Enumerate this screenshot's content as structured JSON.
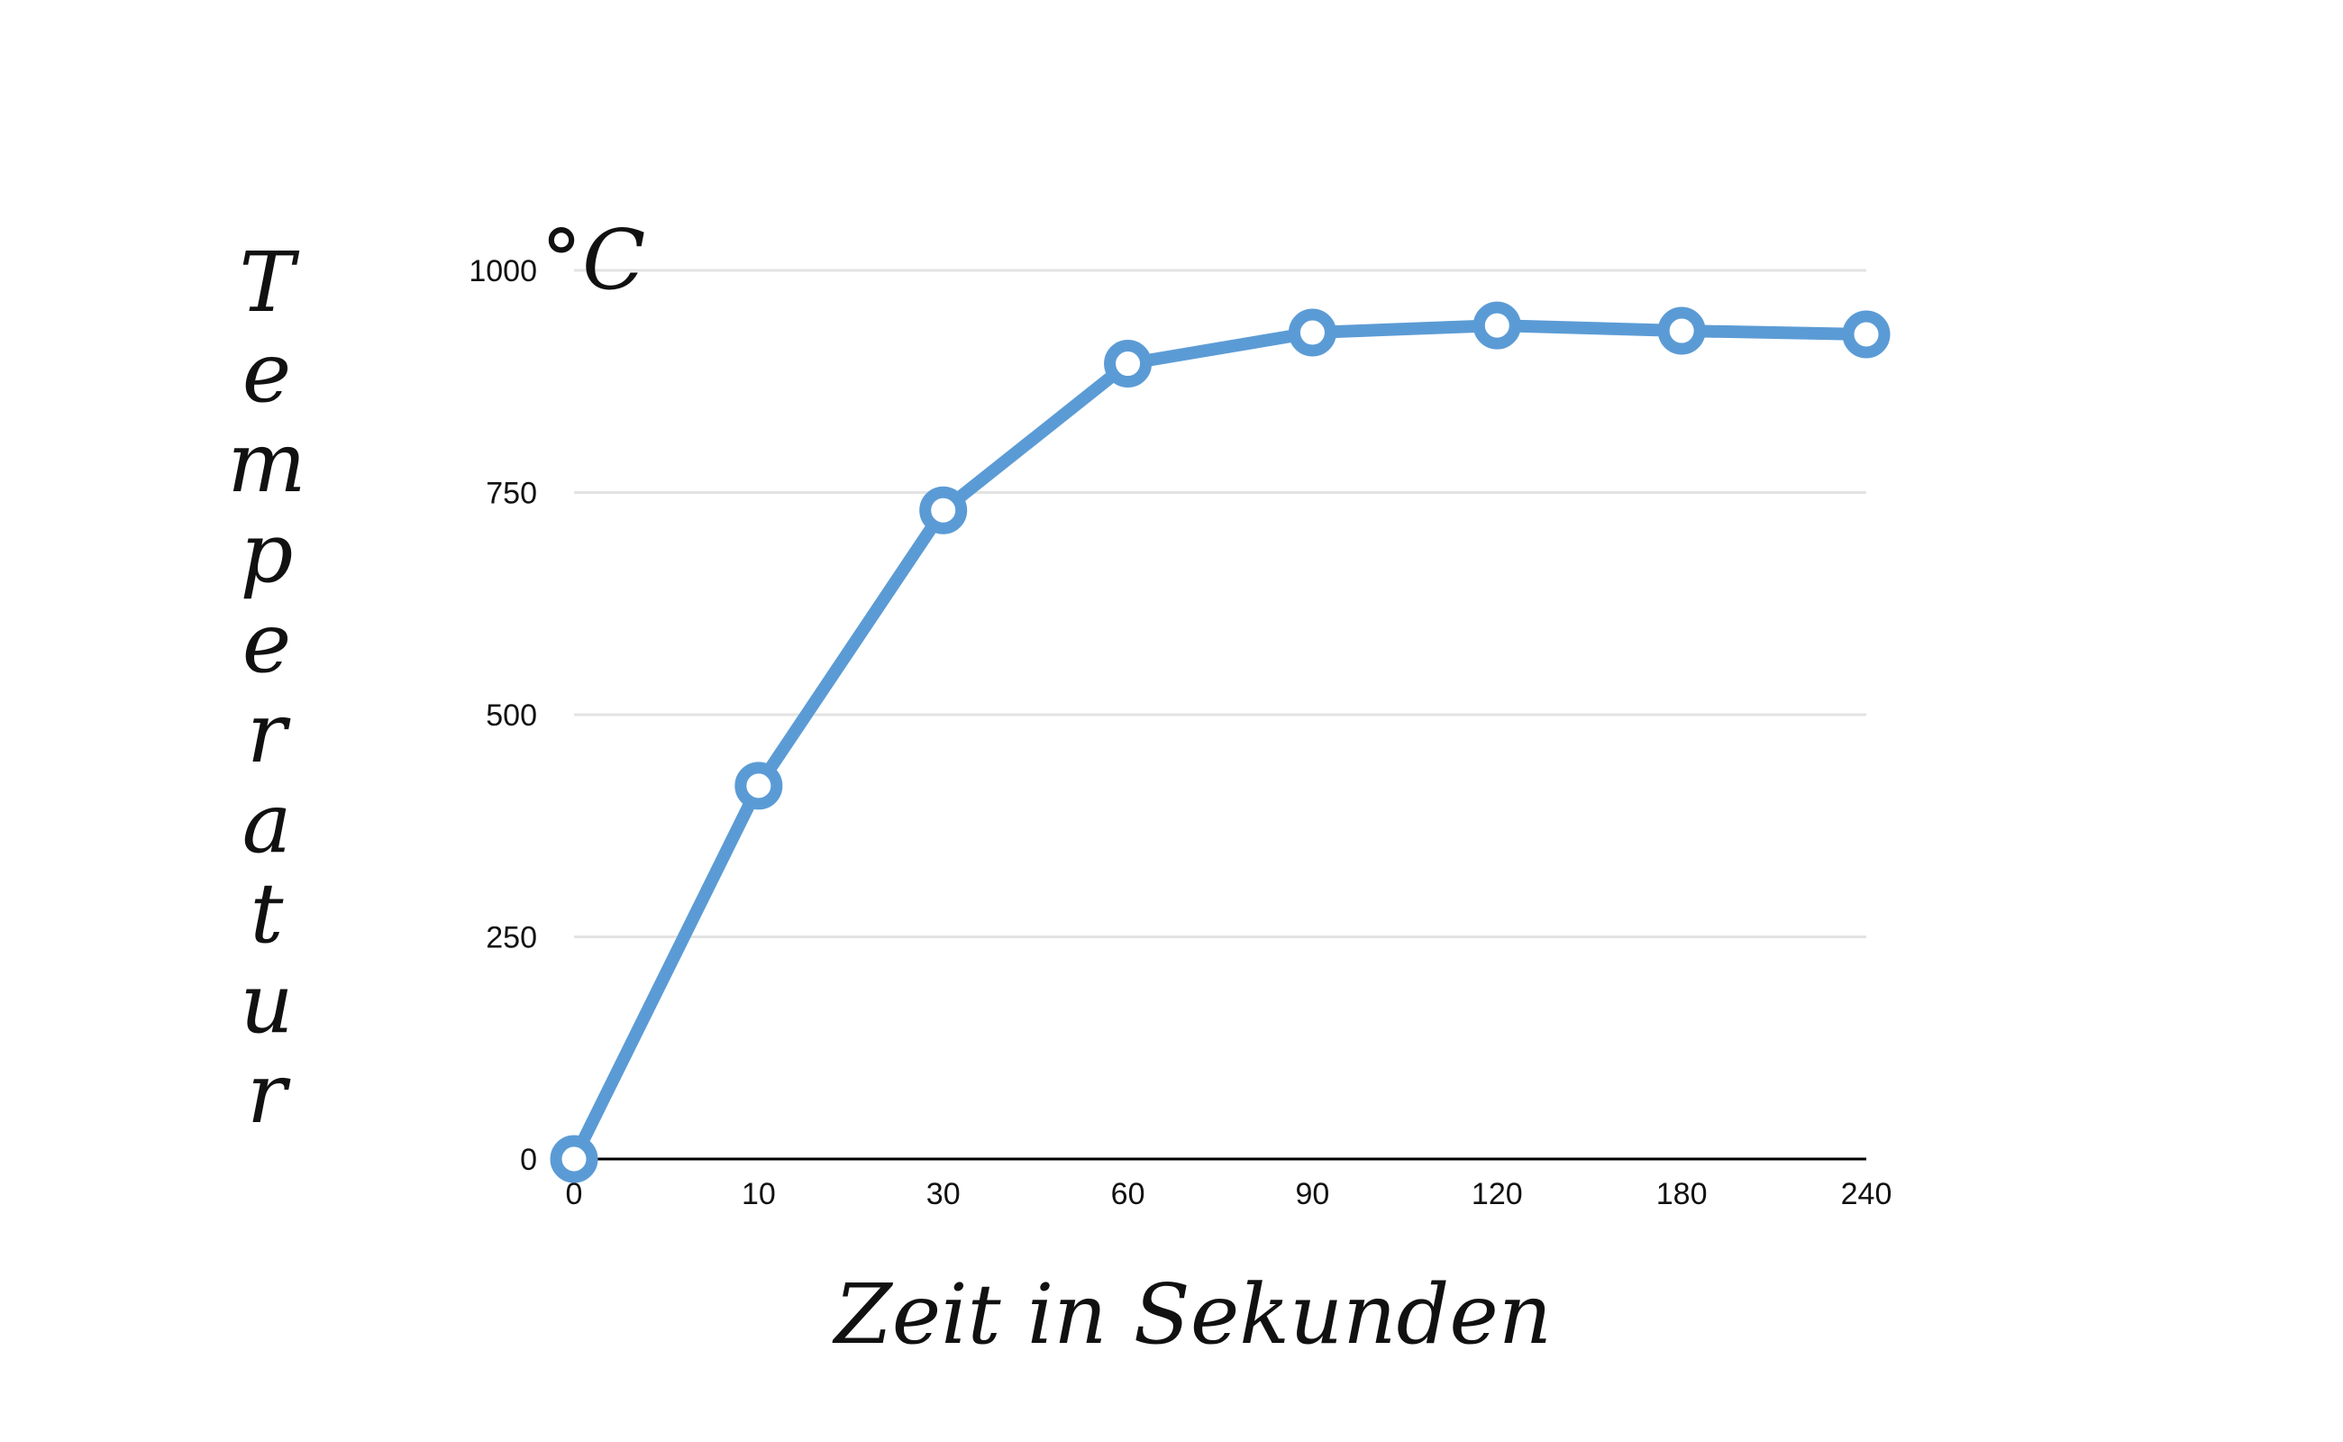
{
  "chart_data": {
    "type": "line",
    "categories": [
      "0",
      "10",
      "30",
      "60",
      "90",
      "120",
      "180",
      "240"
    ],
    "series": [
      {
        "values": [
          0,
          420,
          730,
          895,
          930,
          938,
          932,
          928
        ]
      }
    ],
    "ylabel": "Temperatur",
    "xlabel": "Zeit in Sekunden",
    "y_unit": "°C",
    "ylim": [
      0,
      1000
    ],
    "yticks": [
      "0",
      "250",
      "500",
      "750",
      "1000"
    ],
    "grid": true,
    "legend": "none",
    "colors": {
      "series": "#5b9bd5",
      "grid": "#e3e3e3",
      "axis": "#000000"
    }
  }
}
